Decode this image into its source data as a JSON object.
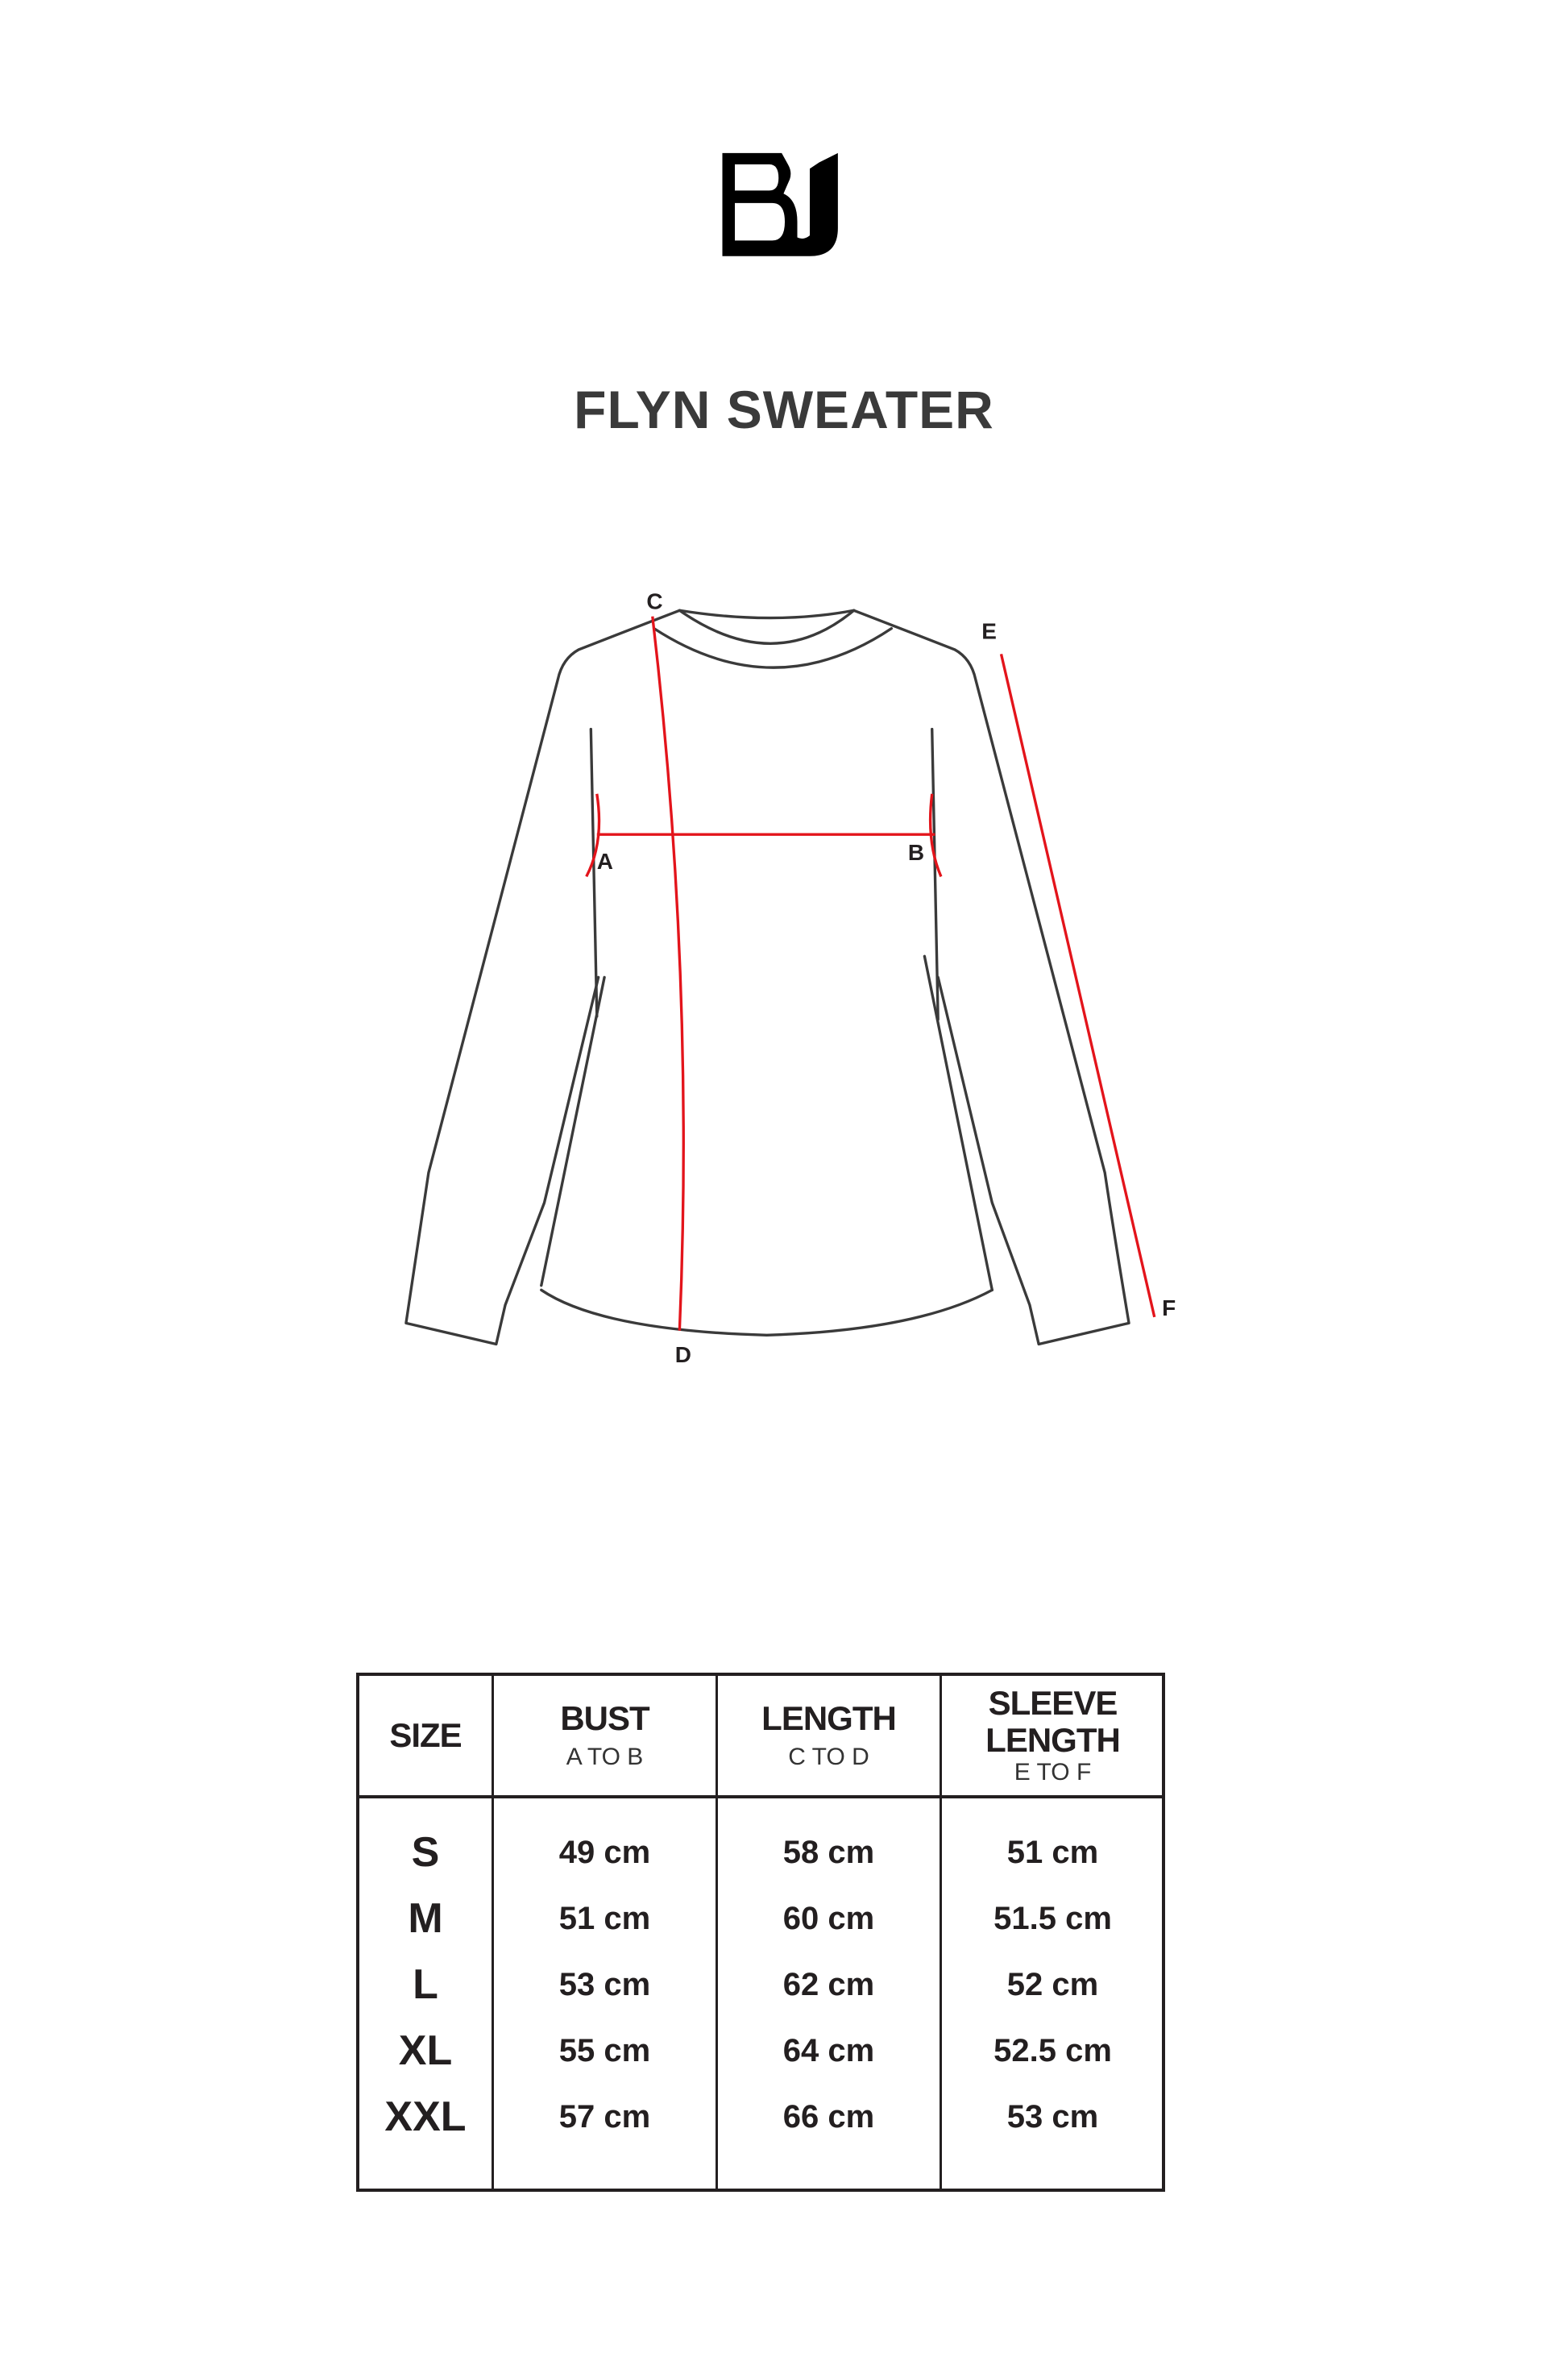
{
  "brand": {
    "logo_text": "BJ"
  },
  "title": "FLYN SWEATER",
  "diagram": {
    "labels": {
      "a": "A",
      "b": "B",
      "c": "C",
      "d": "D",
      "e": "E",
      "f": "F"
    },
    "measure_color": "#e3141b",
    "outline_color": "#3a3a3a"
  },
  "table": {
    "headers": [
      {
        "label": "SIZE",
        "sub": ""
      },
      {
        "label": "BUST",
        "sub": "A TO B"
      },
      {
        "label": "LENGTH",
        "sub": "C TO D"
      },
      {
        "label": "SLEEVE LENGTH",
        "sub": "E TO F"
      }
    ],
    "rows": [
      {
        "size": "S",
        "bust": "49 cm",
        "length": "58 cm",
        "sleeve": "51 cm"
      },
      {
        "size": "M",
        "bust": "51 cm",
        "length": "60 cm",
        "sleeve": "51.5 cm"
      },
      {
        "size": "L",
        "bust": "53 cm",
        "length": "62 cm",
        "sleeve": "52 cm"
      },
      {
        "size": "XL",
        "bust": "55 cm",
        "length": "64 cm",
        "sleeve": "52.5 cm"
      },
      {
        "size": "XXL",
        "bust": "57 cm",
        "length": "66 cm",
        "sleeve": "53 cm"
      }
    ]
  }
}
